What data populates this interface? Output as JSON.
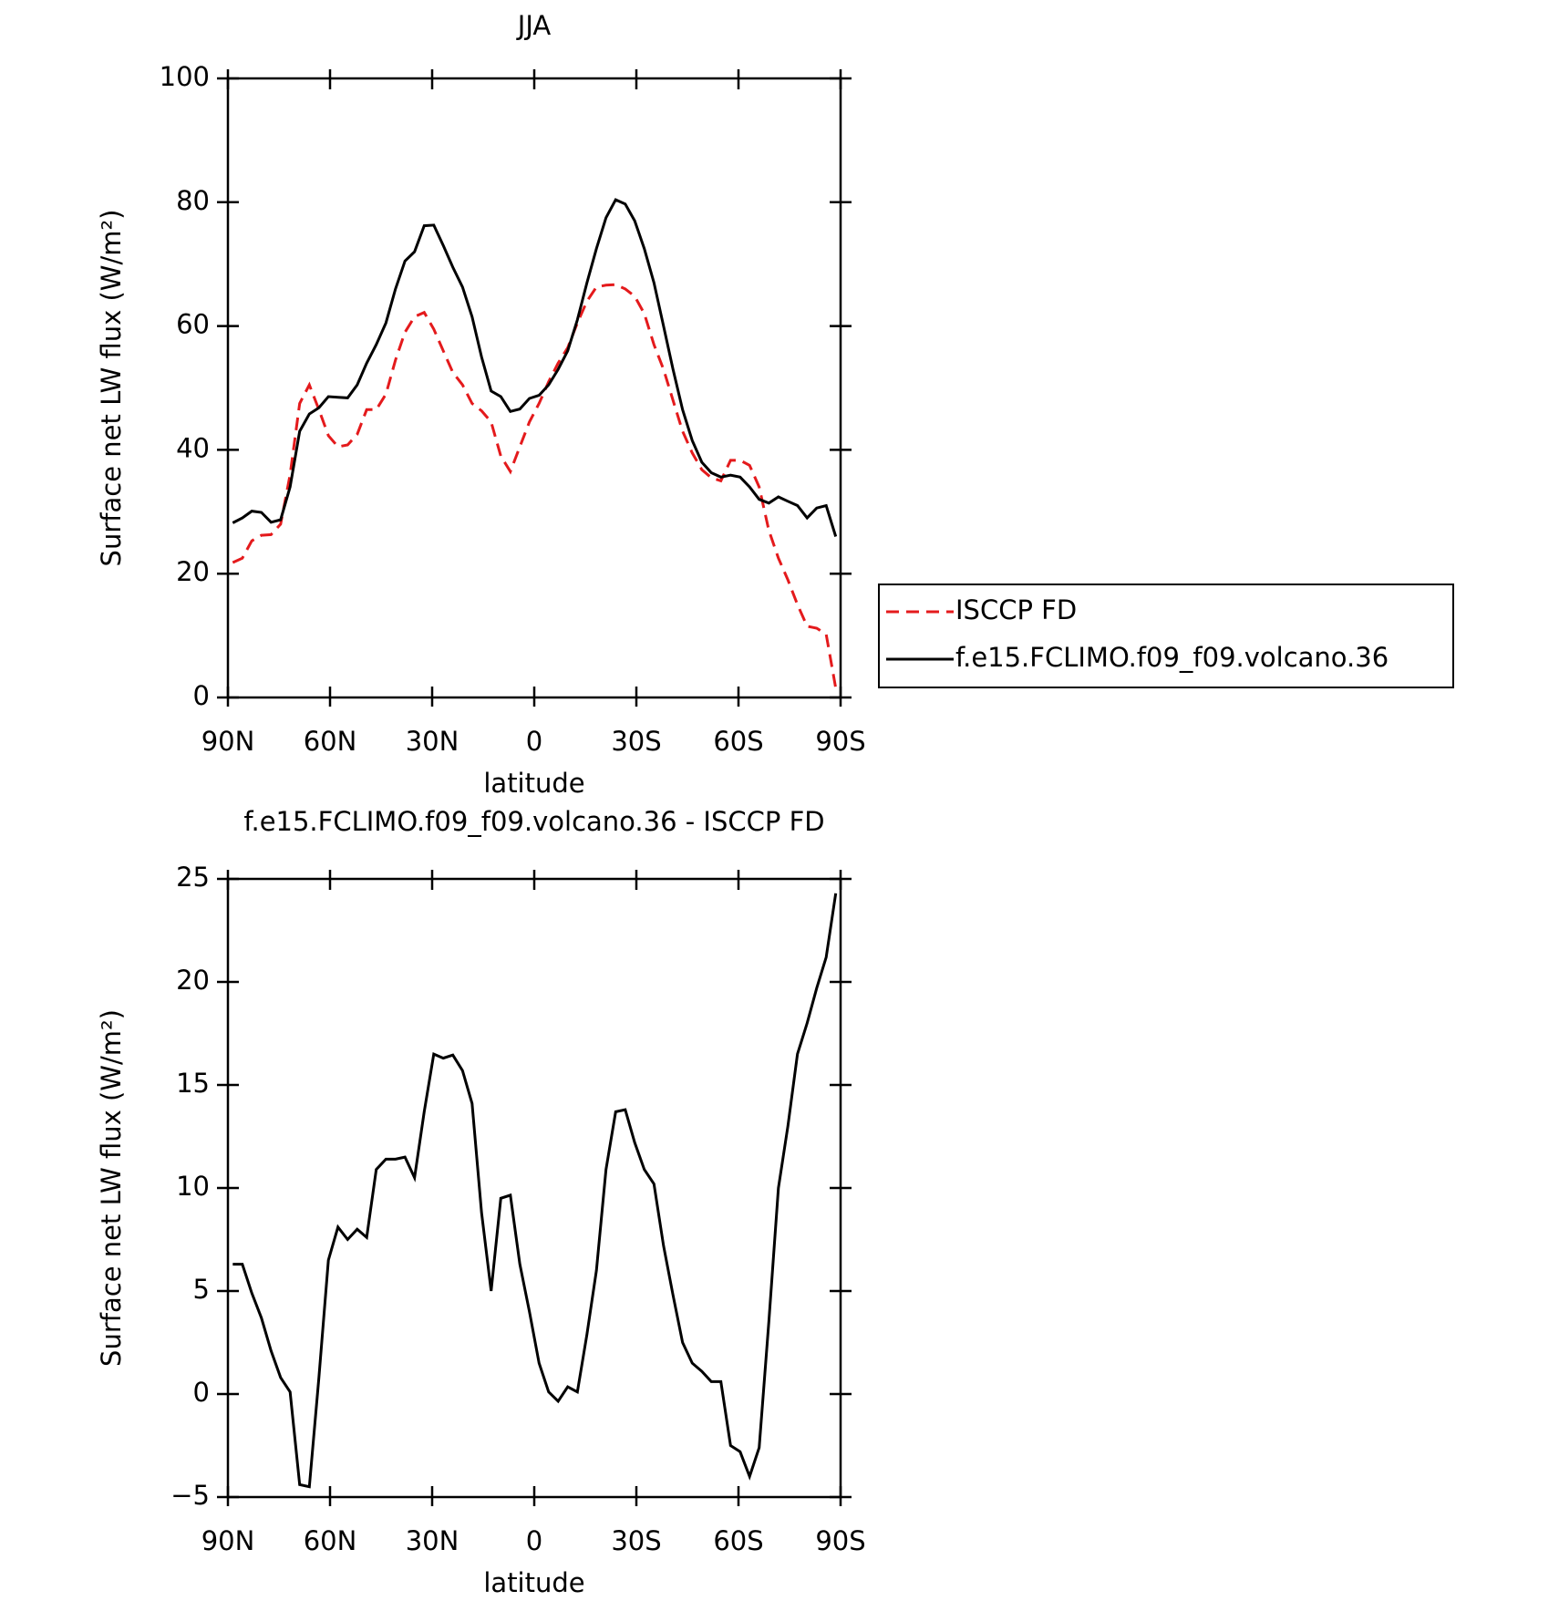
{
  "chart_data": [
    {
      "type": "line",
      "title": "JJA",
      "xlabel": "latitude",
      "ylabel": "Surface net LW flux (W/m²)",
      "x": [
        88.59,
        85.78,
        82.97,
        80.16,
        77.34,
        74.53,
        71.72,
        68.91,
        66.09,
        63.28,
        60.47,
        57.66,
        54.84,
        52.03,
        49.22,
        46.41,
        43.59,
        40.78,
        37.97,
        35.16,
        32.34,
        29.53,
        26.72,
        23.91,
        21.09,
        18.28,
        15.47,
        12.66,
        9.84,
        7.03,
        4.22,
        1.41,
        -1.41,
        -4.22,
        -7.03,
        -9.84,
        -12.66,
        -15.47,
        -18.28,
        -21.09,
        -23.91,
        -26.72,
        -29.53,
        -32.34,
        -35.16,
        -37.97,
        -40.78,
        -43.59,
        -46.41,
        -49.22,
        -52.03,
        -54.84,
        -57.66,
        -60.47,
        -63.28,
        -66.09,
        -68.91,
        -71.72,
        -74.53,
        -77.34,
        -80.16,
        -82.97,
        -85.78,
        -88.59
      ],
      "xlim": [
        90,
        -90
      ],
      "xticks": [
        {
          "value": 90,
          "label": "90N"
        },
        {
          "value": 60,
          "label": "60N"
        },
        {
          "value": 30,
          "label": "30N"
        },
        0,
        {
          "value": -30,
          "label": "30S"
        },
        {
          "value": -60,
          "label": "60S"
        },
        {
          "value": -90,
          "label": "90S"
        }
      ],
      "ylim": [
        0,
        100
      ],
      "yticks": [
        0,
        20,
        40,
        60,
        80,
        100
      ],
      "legend": "right",
      "series": [
        {
          "name": "ISCCP FD",
          "color": "#e41a1c",
          "linestyle": "dashed",
          "values": [
            21.8,
            22.5,
            25.3,
            26.2,
            26.3,
            28,
            36,
            47.5,
            50.5,
            46.5,
            42.3,
            40.5,
            40.8,
            42.5,
            46.5,
            46.5,
            49,
            54.5,
            59,
            61.5,
            62.2,
            59.5,
            56,
            52.5,
            50.5,
            47.5,
            46.3,
            44.5,
            39,
            36.5,
            40.5,
            44.5,
            47.5,
            51,
            54,
            56.5,
            60.5,
            64,
            66.3,
            66.6,
            66.7,
            66,
            64.8,
            62,
            57,
            53,
            48,
            43,
            39.5,
            36.8,
            35.5,
            35,
            38.3,
            38.3,
            37.5,
            34,
            27,
            22.5,
            19,
            15,
            11.5,
            11.2,
            10.2,
            1.5
          ]
        },
        {
          "name": "f.e15.FCLIMO.f09_f09.volcano.36",
          "color": "#000000",
          "linestyle": "solid",
          "values": [
            28.2,
            29,
            30.1,
            29.9,
            28.3,
            28.7,
            34,
            43,
            45.8,
            46.8,
            48.6,
            48.5,
            48.4,
            50.5,
            54,
            57,
            60.5,
            66,
            70.5,
            72,
            76.2,
            76.3,
            73,
            69.5,
            66.3,
            61.5,
            55,
            49.5,
            48.6,
            46.2,
            46.6,
            48.3,
            48.8,
            50.5,
            53,
            56,
            61,
            67,
            72.5,
            77.5,
            80.4,
            79.7,
            77,
            72.5,
            67,
            60,
            53,
            46.5,
            41.5,
            38,
            36.3,
            35.6,
            35.9,
            35.6,
            34,
            32,
            31.4,
            32.4,
            31.7,
            31,
            29,
            30.6,
            31,
            26
          ]
        }
      ]
    },
    {
      "type": "line",
      "title": "f.e15.FCLIMO.f09_f09.volcano.36 - ISCCP FD",
      "xlabel": "latitude",
      "ylabel": "Surface net LW flux (W/m²)",
      "x": [
        88.59,
        85.78,
        82.97,
        80.16,
        77.34,
        74.53,
        71.72,
        68.91,
        66.09,
        63.28,
        60.47,
        57.66,
        54.84,
        52.03,
        49.22,
        46.41,
        43.59,
        40.78,
        37.97,
        35.16,
        32.34,
        29.53,
        26.72,
        23.91,
        21.09,
        18.28,
        15.47,
        12.66,
        9.84,
        7.03,
        4.22,
        1.41,
        -1.41,
        -4.22,
        -7.03,
        -9.84,
        -12.66,
        -15.47,
        -18.28,
        -21.09,
        -23.91,
        -26.72,
        -29.53,
        -32.34,
        -35.16,
        -37.97,
        -40.78,
        -43.59,
        -46.41,
        -49.22,
        -52.03,
        -54.84,
        -57.66,
        -60.47,
        -63.28,
        -66.09,
        -68.91,
        -71.72,
        -74.53,
        -77.34,
        -80.16,
        -82.97,
        -85.78,
        -88.59
      ],
      "xlim": [
        90,
        -90
      ],
      "xticks": [
        {
          "value": 90,
          "label": "90N"
        },
        {
          "value": 60,
          "label": "60N"
        },
        {
          "value": 30,
          "label": "30N"
        },
        0,
        {
          "value": -30,
          "label": "30S"
        },
        {
          "value": -60,
          "label": "60S"
        },
        {
          "value": -90,
          "label": "90S"
        }
      ],
      "ylim": [
        -5,
        25
      ],
      "yticks": [
        {
          "value": -5,
          "label": "−5"
        },
        0,
        5,
        10,
        15,
        20,
        25
      ],
      "series": [
        {
          "color": "#000000",
          "linestyle": "solid",
          "values": [
            6.3,
            6.3,
            4.9,
            3.7,
            2.1,
            0.8,
            0.1,
            -4.4,
            -4.5,
            0.8,
            6.5,
            8.1,
            7.5,
            8.0,
            7.6,
            10.9,
            11.4,
            11.4,
            11.5,
            10.5,
            13.7,
            16.5,
            16.3,
            16.45,
            15.7,
            14.1,
            8.8,
            5.0,
            9.5,
            9.65,
            6.3,
            4.0,
            1.5,
            0.1,
            -0.35,
            0.35,
            0.1,
            2.9,
            6.0,
            10.9,
            13.7,
            13.8,
            12.2,
            10.9,
            10.2,
            7.2,
            4.8,
            2.5,
            1.5,
            1.1,
            0.6,
            0.6,
            -2.5,
            -2.8,
            -4.0,
            -2.6,
            3.5,
            10.0,
            13.0,
            16.5,
            18.0,
            19.7,
            21.2,
            24.3
          ]
        }
      ]
    }
  ]
}
